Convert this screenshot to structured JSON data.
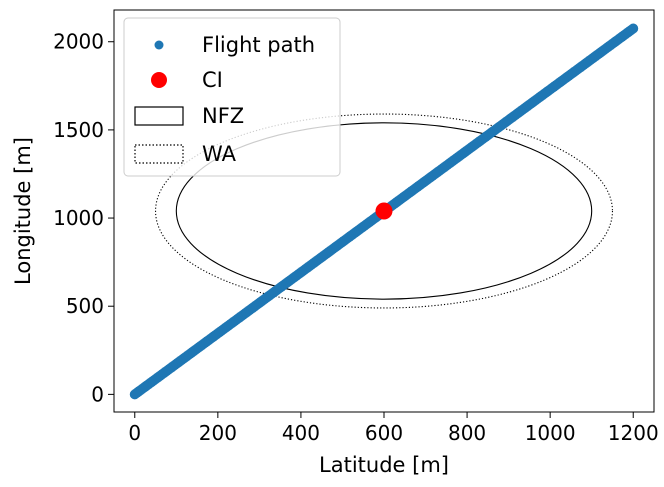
{
  "chart_data": {
    "type": "scatter",
    "xlabel": "Latitude [m]",
    "ylabel": "Longitude [m]",
    "xlim": [
      -50,
      1250
    ],
    "ylim": [
      -100,
      2180
    ],
    "x_ticks": [
      0,
      200,
      400,
      600,
      800,
      1000,
      1200
    ],
    "y_ticks": [
      0,
      500,
      1000,
      1500,
      2000
    ],
    "grid": false,
    "legend_position": "top-left",
    "series": [
      {
        "name": "Flight path",
        "kind": "points",
        "color": "#1f77b4",
        "start": [
          0,
          0
        ],
        "end": [
          1200,
          2075
        ]
      },
      {
        "name": "CI",
        "kind": "point",
        "color": "#ff0000",
        "x": 600,
        "y": 1040
      },
      {
        "name": "NFZ",
        "kind": "ellipse",
        "line_style": "solid",
        "center": [
          600,
          1040
        ],
        "semi_axis_x": 500,
        "semi_axis_y": 500
      },
      {
        "name": "WA",
        "kind": "ellipse",
        "line_style": "dotted",
        "center": [
          600,
          1040
        ],
        "semi_axis_x": 550,
        "semi_axis_y": 550
      }
    ]
  }
}
